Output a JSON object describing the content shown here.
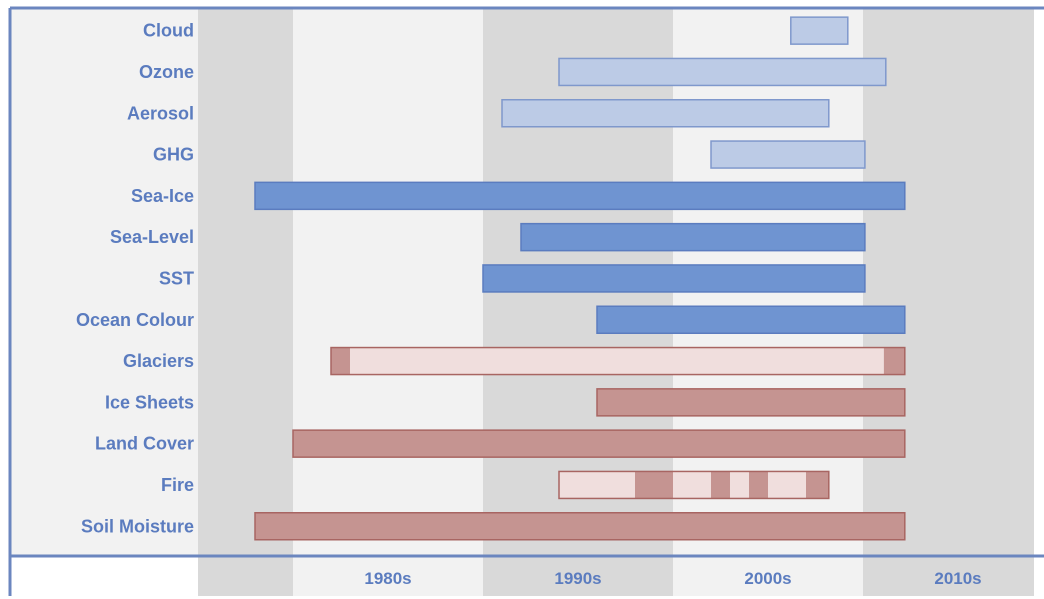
{
  "chart_data": {
    "type": "gantt",
    "title": "",
    "xlabel": "",
    "ylabel": "",
    "x_range": [
      1971,
      2015
    ],
    "ticks": [
      "1980s",
      "1990s",
      "2000s",
      "2010s"
    ],
    "colors": {
      "atmosphere": "#bccbe6",
      "atmosphere_edge": "#7f98cc",
      "ocean": "#6f94d1",
      "ocean_edge": "#5b7cbf",
      "land": "#c59491",
      "land_edge": "#a86562",
      "land_light": "#f0dedd",
      "label": "#5b7cbf",
      "band_dark": "#d9d9d9",
      "band_light": "#f2f2f2",
      "frame": "#6b86bf"
    },
    "rows": [
      {
        "label": "Cloud",
        "group": "atmosphere",
        "segments": [
          {
            "start": 2002.2,
            "end": 2005.2
          }
        ]
      },
      {
        "label": "Ozone",
        "group": "atmosphere",
        "segments": [
          {
            "start": 1990.0,
            "end": 2007.2
          }
        ]
      },
      {
        "label": "Aerosol",
        "group": "atmosphere",
        "segments": [
          {
            "start": 1987.0,
            "end": 2004.2
          }
        ]
      },
      {
        "label": "GHG",
        "group": "atmosphere",
        "segments": [
          {
            "start": 1998.0,
            "end": 2006.1
          }
        ]
      },
      {
        "label": "Sea-Ice",
        "group": "ocean",
        "segments": [
          {
            "start": 1974.0,
            "end": 2008.2
          }
        ]
      },
      {
        "label": "Sea-Level",
        "group": "ocean",
        "segments": [
          {
            "start": 1988.0,
            "end": 2006.1
          }
        ]
      },
      {
        "label": "SST",
        "group": "ocean",
        "segments": [
          {
            "start": 1986.0,
            "end": 2006.1
          }
        ]
      },
      {
        "label": "Ocean Colour",
        "group": "ocean",
        "segments": [
          {
            "start": 1992.0,
            "end": 2008.2
          }
        ]
      },
      {
        "label": "Glaciers",
        "group": "land",
        "segments": [
          {
            "start": 1978.0,
            "end": 1979.0,
            "shade": "dark"
          },
          {
            "start": 1979.0,
            "end": 2007.1,
            "shade": "light"
          },
          {
            "start": 2007.1,
            "end": 2008.2,
            "shade": "dark"
          }
        ]
      },
      {
        "label": "Ice Sheets",
        "group": "land",
        "segments": [
          {
            "start": 1992.0,
            "end": 2008.2
          }
        ]
      },
      {
        "label": "Land Cover",
        "group": "land",
        "segments": [
          {
            "start": 1976.0,
            "end": 2008.2
          }
        ]
      },
      {
        "label": "Fire",
        "group": "land",
        "segments": [
          {
            "start": 1990.0,
            "end": 1994.0,
            "shade": "light"
          },
          {
            "start": 1994.0,
            "end": 1996.0,
            "shade": "dark"
          },
          {
            "start": 1996.0,
            "end": 1998.0,
            "shade": "light"
          },
          {
            "start": 1998.0,
            "end": 1999.0,
            "shade": "dark"
          },
          {
            "start": 1999.0,
            "end": 2000.0,
            "shade": "light"
          },
          {
            "start": 2000.0,
            "end": 2001.0,
            "shade": "dark"
          },
          {
            "start": 2001.0,
            "end": 2003.0,
            "shade": "light"
          },
          {
            "start": 2003.0,
            "end": 2004.2,
            "shade": "dark"
          }
        ]
      },
      {
        "label": "Soil Moisture",
        "group": "land",
        "segments": [
          {
            "start": 1974.0,
            "end": 2008.2
          }
        ]
      }
    ]
  }
}
